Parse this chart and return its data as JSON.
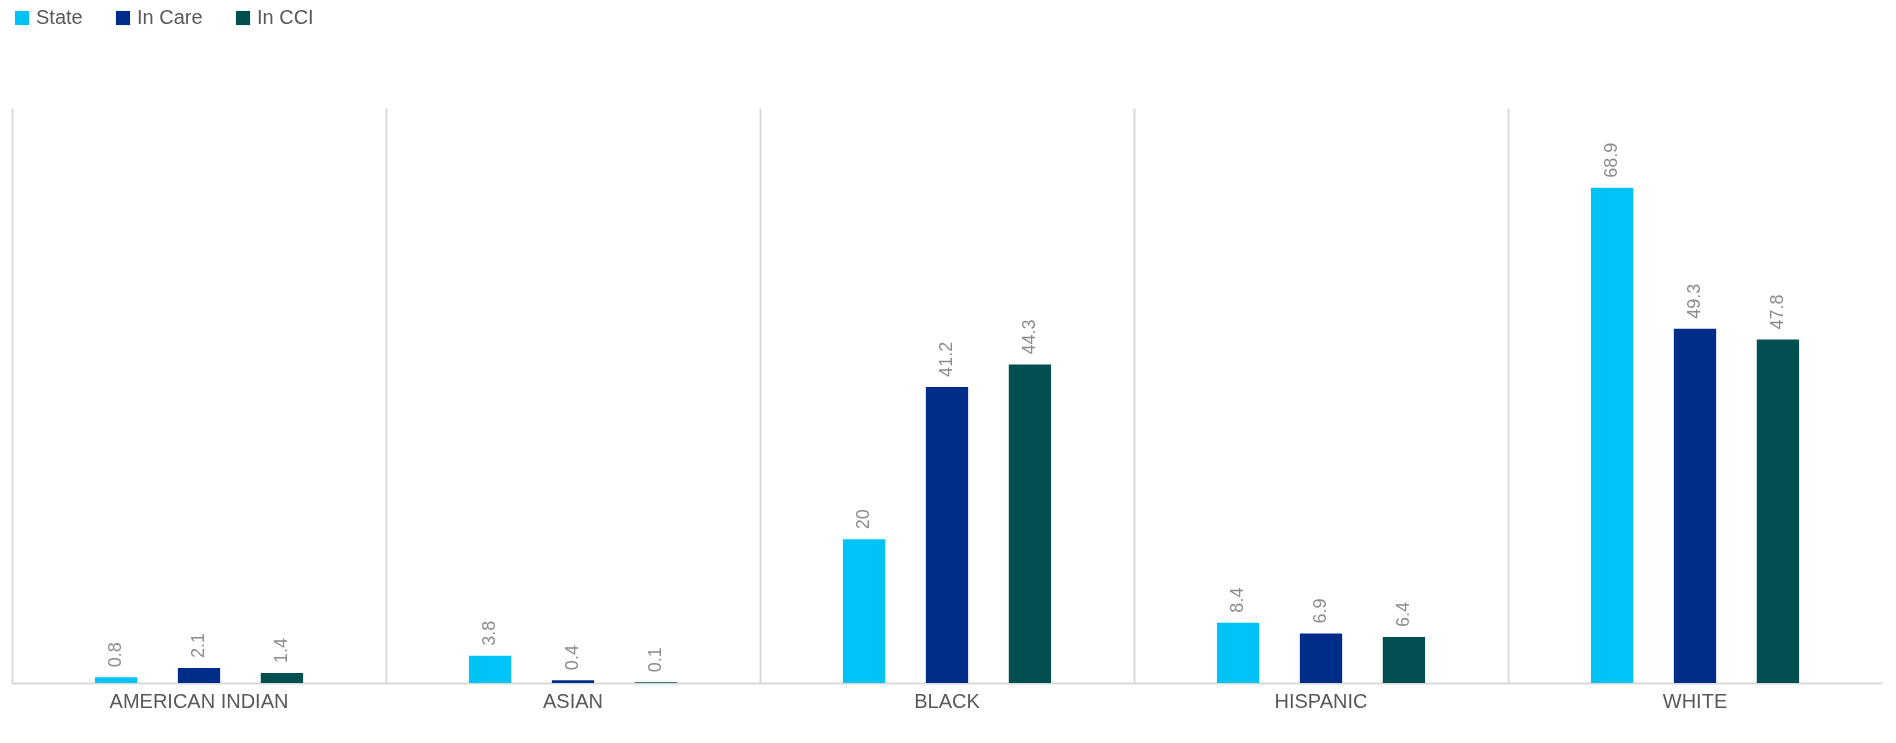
{
  "chart_data": {
    "type": "bar",
    "categories": [
      "AMERICAN INDIAN",
      "ASIAN",
      "BLACK",
      "HISPANIC",
      "WHITE"
    ],
    "series": [
      {
        "name": "State",
        "color": "#00c3f5",
        "values": [
          0.8,
          3.8,
          20,
          8.4,
          68.9
        ]
      },
      {
        "name": "In Care",
        "color": "#002d8a",
        "values": [
          2.1,
          0.4,
          41.2,
          6.9,
          49.3
        ]
      },
      {
        "name": "In CCI",
        "color": "#024f52",
        "values": [
          1.4,
          0.1,
          44.3,
          6.4,
          47.8
        ]
      }
    ],
    "ylim": [
      0,
      80
    ],
    "data_labels": true,
    "legend": "top",
    "grid": "x",
    "tick_labels": "x"
  }
}
